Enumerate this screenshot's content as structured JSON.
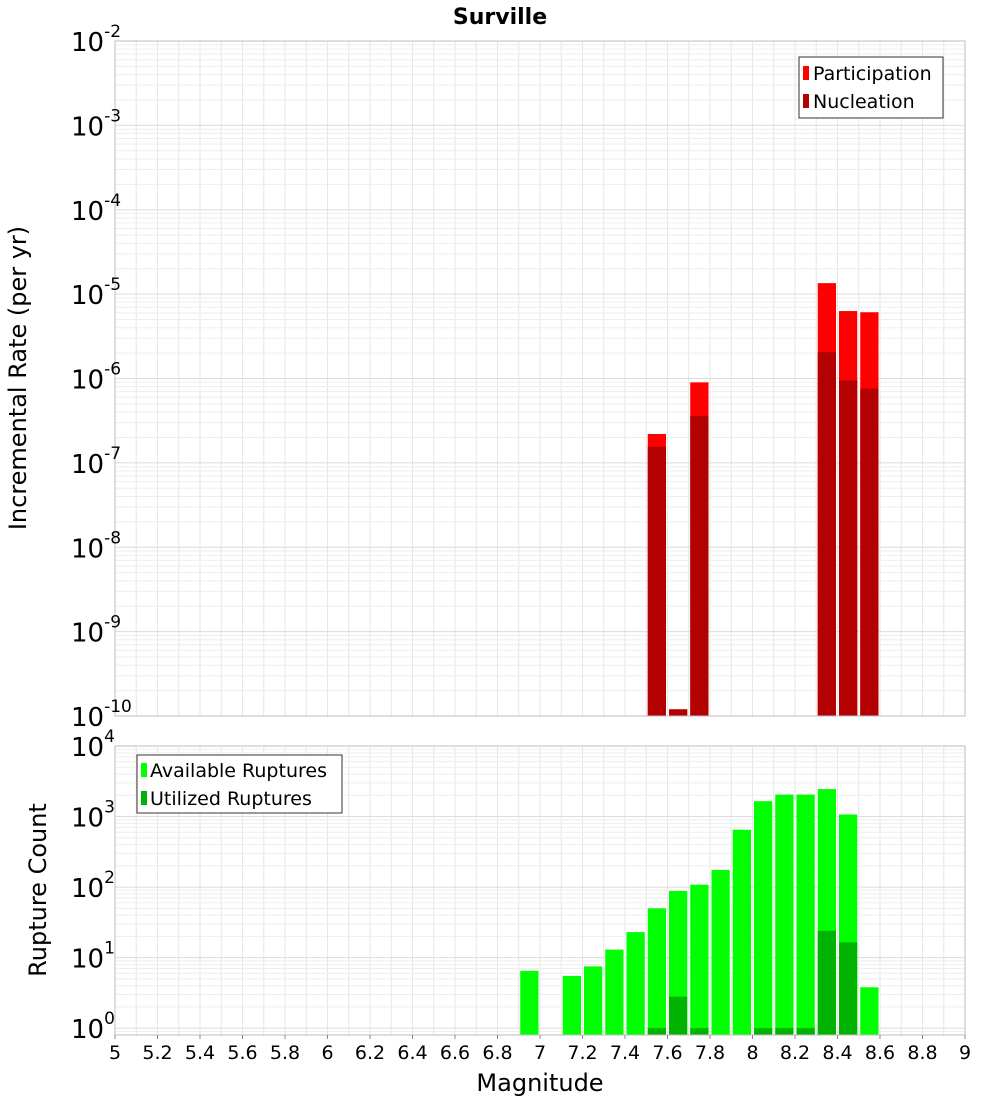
{
  "chart_data": [
    {
      "type": "bar",
      "title": "Surville",
      "xlabel": "",
      "ylabel": "Incremental Rate (per yr)",
      "yscale": "log",
      "ylim": [
        1e-10,
        0.01
      ],
      "xlim": [
        5,
        9
      ],
      "bin_width": 0.1,
      "y_ticks": [
        {
          "base": "10",
          "exp": "-10"
        },
        {
          "base": "10",
          "exp": "-9"
        },
        {
          "base": "10",
          "exp": "-8"
        },
        {
          "base": "10",
          "exp": "-7"
        },
        {
          "base": "10",
          "exp": "-6"
        },
        {
          "base": "10",
          "exp": "-5"
        },
        {
          "base": "10",
          "exp": "-4"
        },
        {
          "base": "10",
          "exp": "-3"
        },
        {
          "base": "10",
          "exp": "-2"
        }
      ],
      "legend_position": "top-right",
      "series": [
        {
          "name": "Participation",
          "color": "#ff0000",
          "x": [
            7.55,
            7.65,
            7.75,
            8.35,
            8.45,
            8.55
          ],
          "values": [
            2.2e-07,
            1.2e-10,
            9e-07,
            1.35e-05,
            6.3e-06,
            6.1e-06
          ]
        },
        {
          "name": "Nucleation",
          "color": "#b30000",
          "x": [
            7.55,
            7.65,
            7.75,
            8.35,
            8.45,
            8.55
          ],
          "values": [
            1.55e-07,
            1.2e-10,
            3.6e-07,
            2.05e-06,
            9.5e-07,
            7.6e-07
          ]
        }
      ]
    },
    {
      "type": "bar",
      "title": "",
      "xlabel": "Magnitude",
      "ylabel": "Rupture Count",
      "yscale": "log",
      "ylim": [
        0.8,
        10000
      ],
      "xlim": [
        5,
        9
      ],
      "bin_width": 0.1,
      "y_ticks": [
        {
          "base": "10",
          "exp": "0"
        },
        {
          "base": "10",
          "exp": "1"
        },
        {
          "base": "10",
          "exp": "2"
        },
        {
          "base": "10",
          "exp": "3"
        },
        {
          "base": "10",
          "exp": "4"
        }
      ],
      "x_ticks": [
        "5",
        "5.2",
        "5.4",
        "5.6",
        "5.8",
        "6",
        "6.2",
        "6.4",
        "6.6",
        "6.8",
        "7",
        "7.2",
        "7.4",
        "7.6",
        "7.8",
        "8",
        "8.2",
        "8.4",
        "8.6",
        "8.8",
        "9"
      ],
      "legend_position": "top-left",
      "series": [
        {
          "name": "Available Ruptures",
          "color": "#00ff00",
          "x": [
            6.95,
            7.15,
            7.25,
            7.35,
            7.45,
            7.55,
            7.65,
            7.75,
            7.85,
            7.95,
            8.05,
            8.15,
            8.25,
            8.35,
            8.45,
            8.55
          ],
          "values": [
            6.5,
            5.5,
            7.5,
            13,
            23,
            50,
            88,
            108,
            175,
            650,
            1650,
            2050,
            2050,
            2450,
            1070,
            3.8
          ]
        },
        {
          "name": "Utilized Ruptures",
          "color": "#00b300",
          "x": [
            7.55,
            7.65,
            7.75,
            8.05,
            8.15,
            8.25,
            8.35,
            8.45
          ],
          "values": [
            1,
            2.8,
            1,
            1,
            1,
            1,
            24,
            16.5
          ]
        }
      ]
    }
  ]
}
